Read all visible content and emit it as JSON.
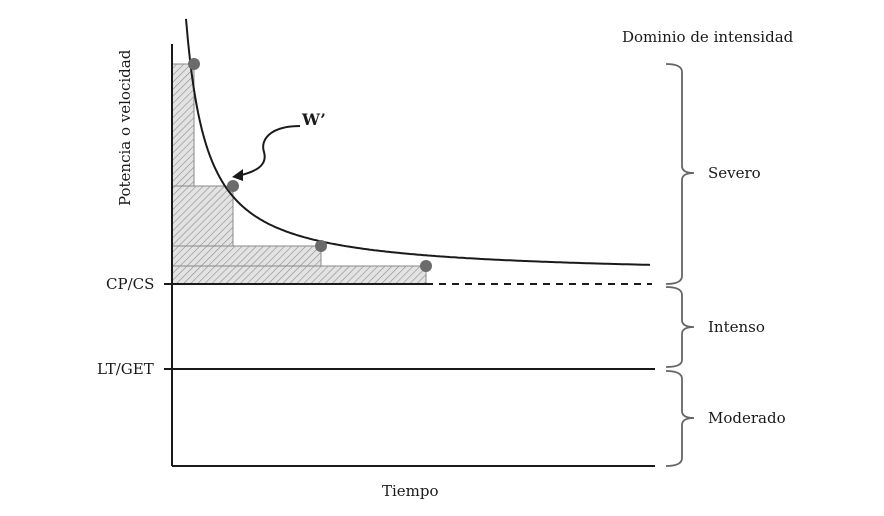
{
  "title": "Dominio de intensidad",
  "axes": {
    "ylabel": "Potencia o velocidad",
    "xlabel": "Tiempo"
  },
  "thresholds": {
    "cp": "CP/CS",
    "lt": "LT/GET"
  },
  "annotation": "W’",
  "domains": {
    "severe": "Severo",
    "heavy": "Intenso",
    "moderate": "Moderado"
  },
  "colors": {
    "line": "#1a1a1a",
    "point": "#6b6b6b",
    "hatch": "#9a9a9a",
    "fill": "#d9d9d9"
  }
}
